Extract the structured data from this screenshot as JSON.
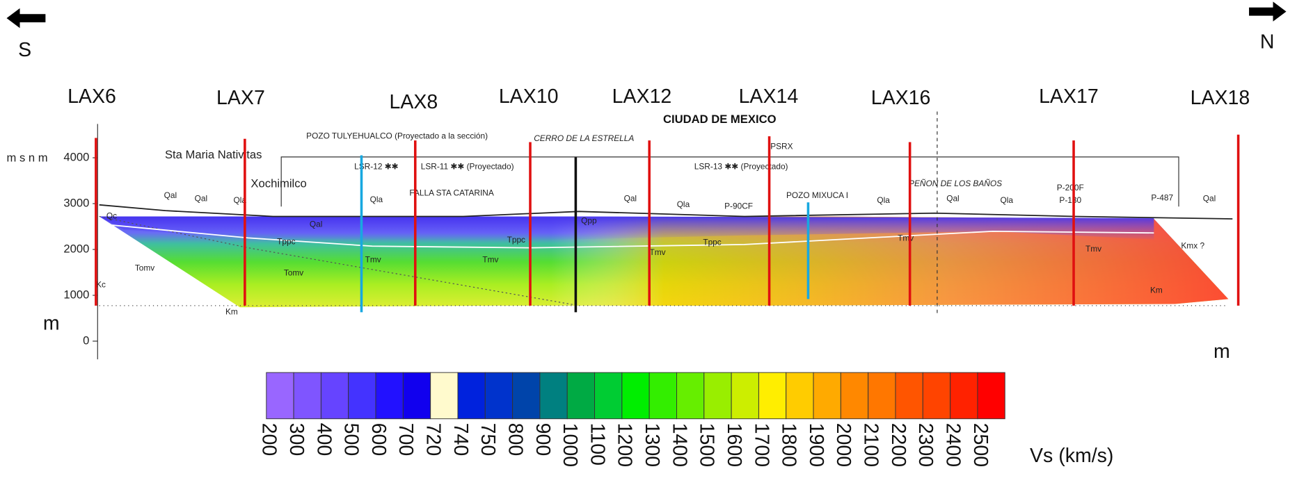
{
  "directions": {
    "left": "S",
    "right": "N"
  },
  "stations": [
    "LAX6",
    "LAX7",
    "LAX8",
    "LAX10",
    "LAX12",
    "LAX14",
    "LAX16",
    "LAX17",
    "LAX18"
  ],
  "elevation_axis": {
    "label": "m s n m",
    "ticks": [
      4000,
      3000,
      2000,
      1000,
      0
    ],
    "unit": "m"
  },
  "distance_unit": "m",
  "section_labels": [
    "POZO TULYEHUALCO (Proyectado a la sección)",
    "CERRO DE LA ESTRELLA",
    "CIUDAD DE MEXICO",
    "PSRX",
    "Sta Maria Nativitas",
    "Xochimilco",
    "LSR-12 ✱✱",
    "LSR-11 ✱✱ (Proyectado)",
    "LSR-13 ✱✱ (Proyectado)",
    "FALLA STA CATARINA",
    "PEÑON DE LOS BAÑOS",
    "POZO MIXUCA I",
    "P-90CF",
    "P-200F",
    "P-130",
    "P-487",
    "Qal",
    "Qal",
    "Qal",
    "Qal",
    "Qal",
    "Qla",
    "Qla",
    "Qla",
    "Qla",
    "Qla",
    "Qc",
    "Qal",
    "Qpp",
    "Tppc",
    "Tppc",
    "Tppc",
    "Tmv",
    "Tmv",
    "Tmv",
    "Tmv",
    "Tmv",
    "Tomv",
    "Tomv",
    "Kc",
    "Km",
    "Km",
    "Kmx ?"
  ],
  "legend": {
    "title": "Vs (km/s)",
    "entries": [
      {
        "value": 200,
        "color": "#9966ff"
      },
      {
        "value": 300,
        "color": "#7f55ff"
      },
      {
        "value": 400,
        "color": "#6644ff"
      },
      {
        "value": 500,
        "color": "#4433ff"
      },
      {
        "value": 600,
        "color": "#2211ff"
      },
      {
        "value": 700,
        "color": "#1100ee"
      },
      {
        "value": 720,
        "color": "#fffacd"
      },
      {
        "value": 740,
        "color": "#0022dd"
      },
      {
        "value": 750,
        "color": "#0033cc"
      },
      {
        "value": 800,
        "color": "#0044aa"
      },
      {
        "value": 900,
        "color": "#008080"
      },
      {
        "value": 1000,
        "color": "#00aa44"
      },
      {
        "value": 1100,
        "color": "#00cc33"
      },
      {
        "value": 1200,
        "color": "#00ee00"
      },
      {
        "value": 1300,
        "color": "#33ee00"
      },
      {
        "value": 1400,
        "color": "#66ee00"
      },
      {
        "value": 1500,
        "color": "#99ee00"
      },
      {
        "value": 1600,
        "color": "#ccee00"
      },
      {
        "value": 1700,
        "color": "#ffee00"
      },
      {
        "value": 1800,
        "color": "#ffcc00"
      },
      {
        "value": 1900,
        "color": "#ffaa00"
      },
      {
        "value": 2000,
        "color": "#ff8800"
      },
      {
        "value": 2100,
        "color": "#ff7700"
      },
      {
        "value": 2200,
        "color": "#ff5500"
      },
      {
        "value": 2300,
        "color": "#ff4400"
      },
      {
        "value": 2400,
        "color": "#ff2200"
      },
      {
        "value": 2500,
        "color": "#ff0000"
      }
    ]
  }
}
